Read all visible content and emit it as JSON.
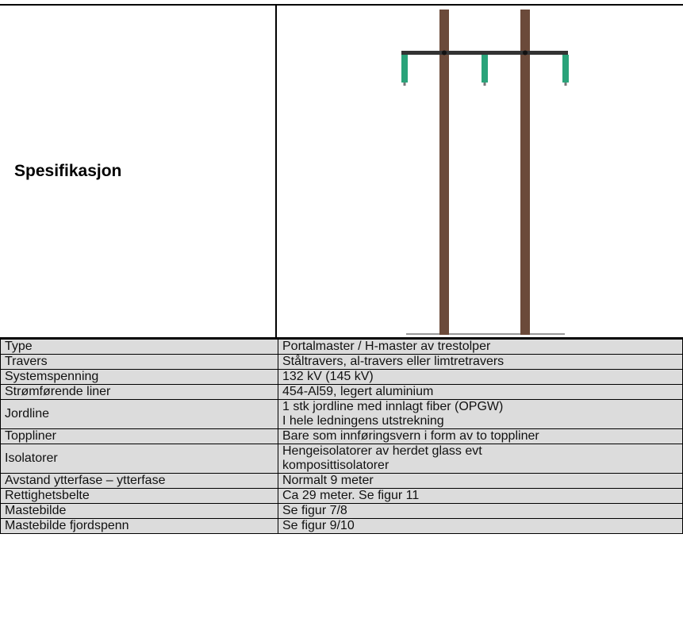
{
  "header": {
    "title": "Spesifikasjon"
  },
  "table": {
    "rows": [
      [
        "Type",
        "Portalmaster / H-master av trestolper"
      ],
      [
        "Travers",
        "Ståltravers, al-travers eller limtretravers"
      ],
      [
        "Systemspenning",
        "132 kV (145 kV)"
      ],
      [
        "Strømførende liner",
        "454-Al59, legert aluminium"
      ],
      [
        "Jordline",
        "1 stk jordline med innlagt fiber (OPGW)",
        "I hele ledningens utstrekning"
      ],
      [
        "Toppliner",
        "Bare som innføringsvern i form av to toppliner"
      ],
      [
        "Isolatorer",
        "Hengeisolatorer av herdet glass evt",
        "komposittisolatorer"
      ],
      [
        "Avstand ytterfase – ytterfase",
        "Normalt 9 meter"
      ],
      [
        "Rettighetsbelte",
        "Ca 29 meter. Se figur 11"
      ],
      [
        "Mastebilde",
        "Se figur 7/8"
      ],
      [
        "Mastebilde fjordspenn",
        "Se figur 9/10"
      ]
    ]
  }
}
